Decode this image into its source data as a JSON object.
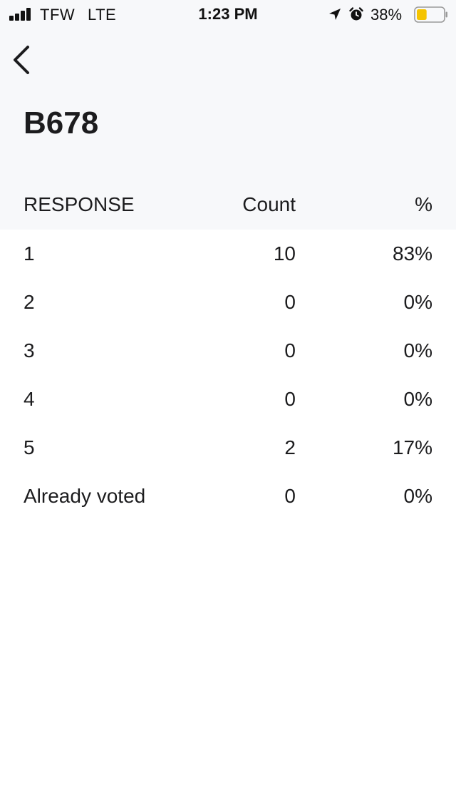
{
  "status_bar": {
    "carrier": "TFW",
    "network": "LTE",
    "time": "1:23 PM",
    "battery_percent": "38%",
    "battery_level": 0.38,
    "battery_color": "#f5c400",
    "icons": [
      "signal-bars-icon",
      "location-arrow-icon",
      "alarm-clock-icon",
      "battery-icon"
    ]
  },
  "nav": {
    "back_icon": "chevron-left-icon"
  },
  "page": {
    "title": "B678"
  },
  "table": {
    "headers": {
      "response": "RESPONSE",
      "count": "Count",
      "percent": "%"
    },
    "rows": [
      {
        "response": "1",
        "count": "10",
        "percent": "83%"
      },
      {
        "response": "2",
        "count": "0",
        "percent": "0%"
      },
      {
        "response": "3",
        "count": "0",
        "percent": "0%"
      },
      {
        "response": "4",
        "count": "0",
        "percent": "0%"
      },
      {
        "response": "5",
        "count": "2",
        "percent": "17%"
      },
      {
        "response": "Already voted",
        "count": "0",
        "percent": "0%"
      }
    ]
  },
  "colors": {
    "header_background": "#f7f8fa",
    "body_background": "#ffffff",
    "text": "#1c1c1e"
  }
}
